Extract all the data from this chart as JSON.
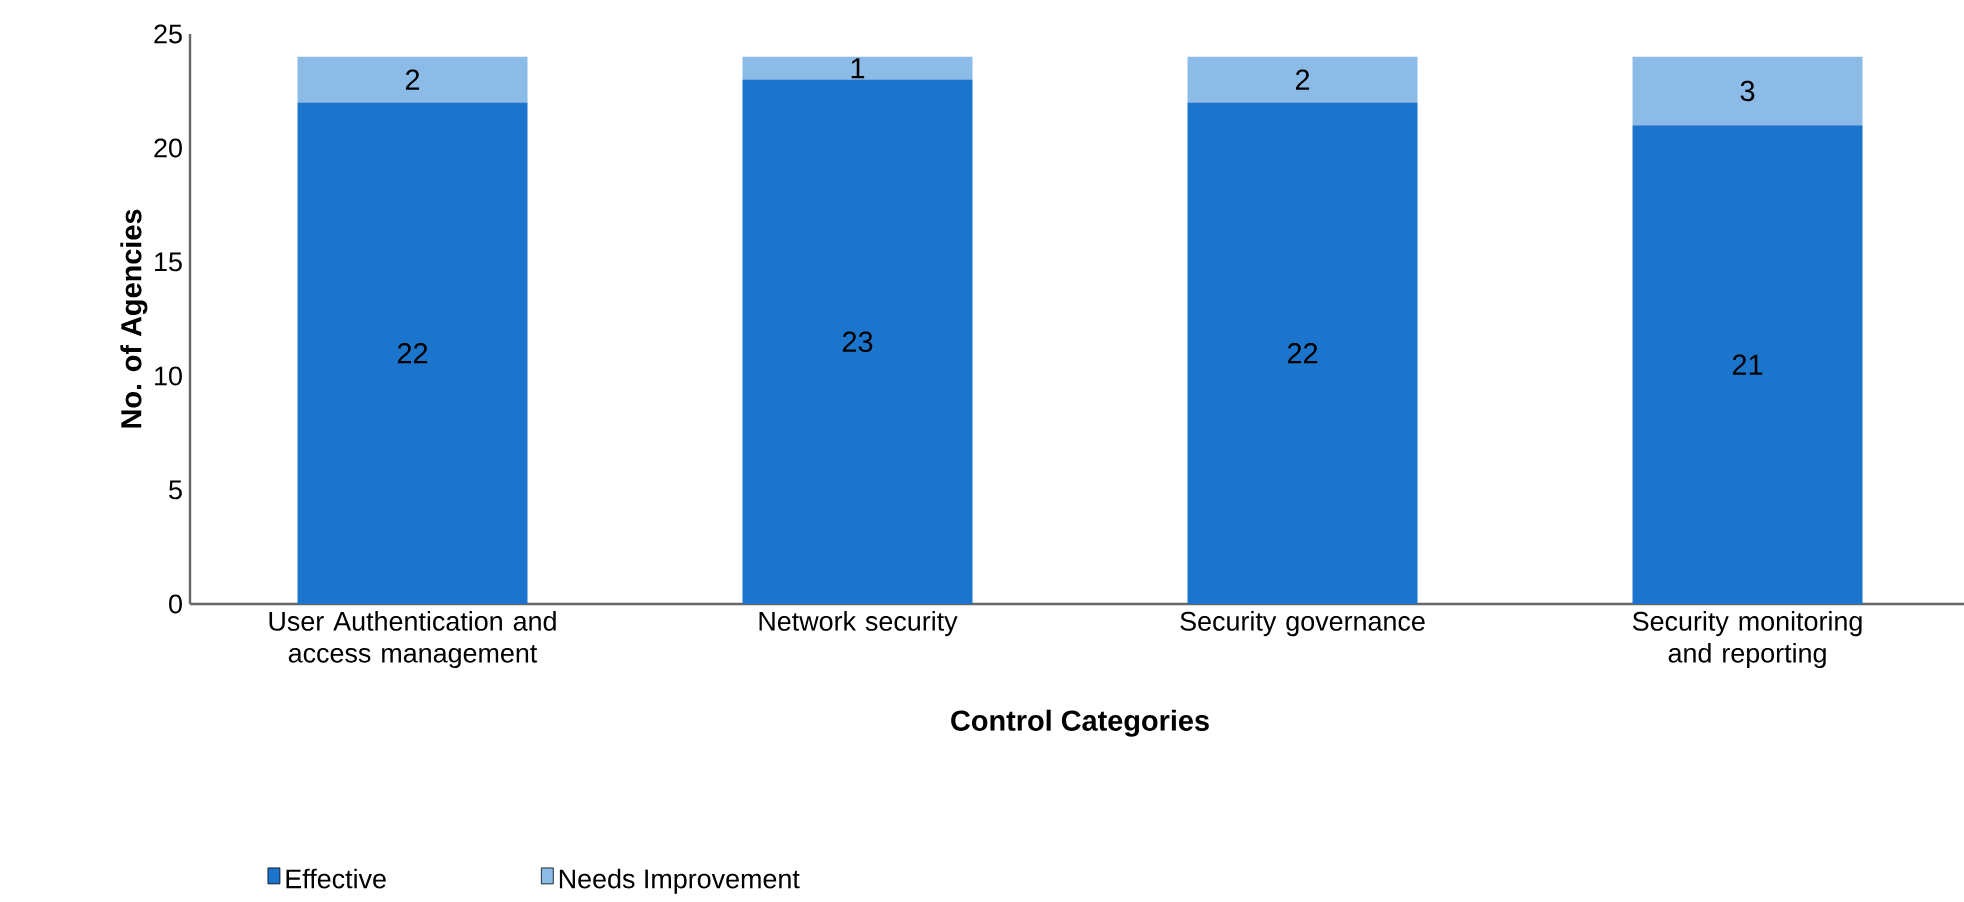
{
  "chart_data": {
    "type": "bar",
    "stacked": true,
    "xlabel": "Control  Categories",
    "ylabel": "No. of Agencies",
    "categories": [
      "User Authentication and access management",
      "Network security",
      "Security governance",
      "Security monitoring and reporting"
    ],
    "series": [
      {
        "name": "Effective",
        "color": "#1c75cd",
        "values": [
          22,
          23,
          22,
          21
        ]
      },
      {
        "name": "Needs Improvement",
        "color": "#8cbbe7",
        "values": [
          2,
          1,
          2,
          3
        ]
      }
    ],
    "ylim": [
      0,
      25
    ],
    "yticks": [
      0,
      5,
      10,
      15,
      20,
      25
    ],
    "data_labels": true,
    "legend": "bottom"
  }
}
